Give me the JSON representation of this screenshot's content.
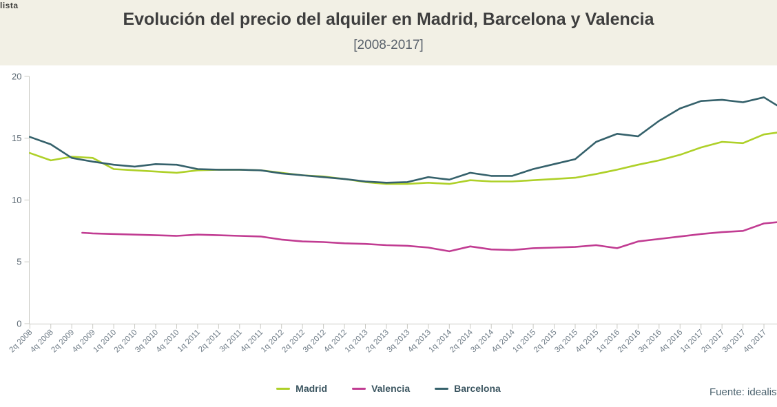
{
  "header": {
    "logo_fragment": "lista"
  },
  "footer": {
    "source": "Fuente: idealista"
  },
  "chart_data": {
    "type": "line",
    "title": "Evolución del precio del alquiler en Madrid, Barcelona y Valencia",
    "subtitle": "[2008-2017]",
    "ylabel": "",
    "xlabel": "",
    "ylim": [
      0,
      20
    ],
    "y_ticks": [
      0,
      5,
      10,
      15,
      20
    ],
    "grid": false,
    "legend_position": "bottom-center",
    "background_color": "#f2f0e5",
    "plot_background_color": "#ffffff",
    "axis_color": "#c9c9c3",
    "categories": [
      "2q 2008",
      "4q 2008",
      "2q 2009",
      "4q 2009",
      "1q 2010",
      "2q 2010",
      "3q 2010",
      "4q 2010",
      "1q 2011",
      "2q 2011",
      "3q 2011",
      "4q 2011",
      "1q 2012",
      "2q 2012",
      "3q 2012",
      "4q 2012",
      "1q 2013",
      "2q 2013",
      "3q 2013",
      "4q 2013",
      "1q 2014",
      "2q 2014",
      "3q 2014",
      "4q 2014",
      "1q 2015",
      "2q 2015",
      "3q 2015",
      "4q 2015",
      "1q 2016",
      "2q 2016",
      "3q 2016",
      "4q 2016",
      "1q 2017",
      "2q 2017",
      "3q 2017",
      "4q 2017"
    ],
    "series": [
      {
        "name": "Madrid",
        "color": "#aed028",
        "x_start": 0,
        "values": [
          13.8,
          13.2,
          13.5,
          13.4,
          12.5,
          12.4,
          12.3,
          12.2,
          12.4,
          12.45,
          12.45,
          12.4,
          12.2,
          12.0,
          11.9,
          11.7,
          11.45,
          11.3,
          11.3,
          11.4,
          11.3,
          11.6,
          11.5,
          11.5,
          11.6,
          11.7,
          11.8,
          12.1,
          12.45,
          12.85,
          13.2,
          13.65,
          14.25,
          14.7,
          14.6,
          15.3
        ],
        "edge_value": 15.45
      },
      {
        "name": "Valencia",
        "color": "#c13c92",
        "x_start": 3,
        "lead": {
          "x_index": 2.5,
          "value": 7.35
        },
        "values": [
          7.3,
          7.25,
          7.2,
          7.15,
          7.1,
          7.2,
          7.15,
          7.1,
          7.05,
          6.8,
          6.65,
          6.6,
          6.5,
          6.45,
          6.35,
          6.3,
          6.15,
          5.85,
          6.25,
          6.0,
          5.95,
          6.1,
          6.15,
          6.2,
          6.35,
          6.1,
          6.65,
          6.85,
          7.05,
          7.25,
          7.4,
          7.5,
          8.1
        ],
        "edge_value": 8.2
      },
      {
        "name": "Barcelona",
        "color": "#35616b",
        "x_start": 0,
        "values": [
          15.1,
          14.5,
          13.4,
          13.1,
          12.85,
          12.7,
          12.9,
          12.85,
          12.5,
          12.45,
          12.45,
          12.4,
          12.15,
          12.0,
          11.85,
          11.7,
          11.5,
          11.4,
          11.45,
          11.85,
          11.65,
          12.2,
          11.95,
          11.95,
          12.5,
          12.9,
          13.3,
          14.7,
          15.35,
          15.15,
          16.4,
          17.4,
          18.0,
          18.1,
          17.9,
          18.3
        ],
        "edge_value": 17.65
      }
    ]
  }
}
